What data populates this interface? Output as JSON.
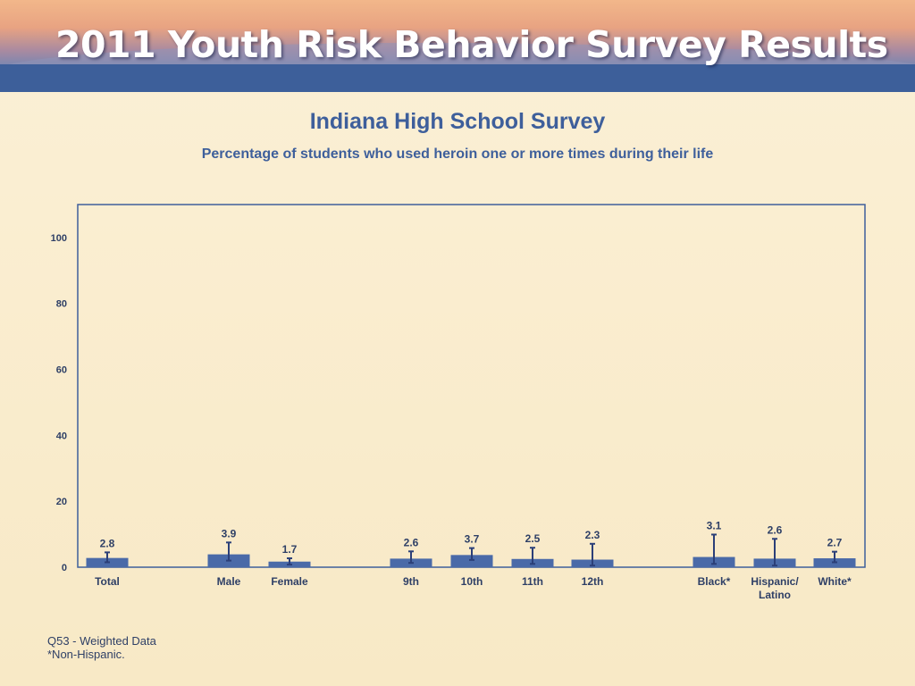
{
  "banner": {
    "title": "2011 Youth Risk Behavior Survey Results"
  },
  "colors": {
    "bar": "#4a6aa8",
    "errorbar": "#2b3f78",
    "axis": "#3e5f9b",
    "text": "#2e3f66"
  },
  "chart_data": {
    "type": "bar",
    "title": "Indiana High School Survey",
    "subtitle": "Percentage of students who used heroin one or more times during their life",
    "xlabel": "",
    "ylabel": "",
    "ylim": [
      0,
      110
    ],
    "yticks": [
      0,
      20,
      40,
      60,
      80,
      100
    ],
    "grid": false,
    "categories": [
      "Total",
      "Male",
      "Female",
      "9th",
      "10th",
      "11th",
      "12th",
      "Black*",
      "Hispanic/ Latino",
      "White*"
    ],
    "values": [
      2.8,
      3.9,
      1.7,
      2.6,
      3.7,
      2.5,
      2.3,
      3.1,
      2.6,
      2.7
    ],
    "ci_low": [
      1.5,
      2.0,
      0.8,
      1.3,
      2.2,
      1.0,
      0.5,
      1.0,
      0.5,
      1.5
    ],
    "ci_high": [
      4.5,
      7.5,
      2.7,
      4.8,
      5.8,
      5.9,
      7.1,
      9.9,
      8.6,
      4.7
    ],
    "value_labels": [
      "2.8",
      "3.9",
      "1.7",
      "2.6",
      "3.7",
      "2.5",
      "2.3",
      "3.1",
      "2.6",
      "2.7"
    ]
  },
  "footnotes": {
    "line1": "Q53 - Weighted Data",
    "line2": "*Non-Hispanic."
  }
}
